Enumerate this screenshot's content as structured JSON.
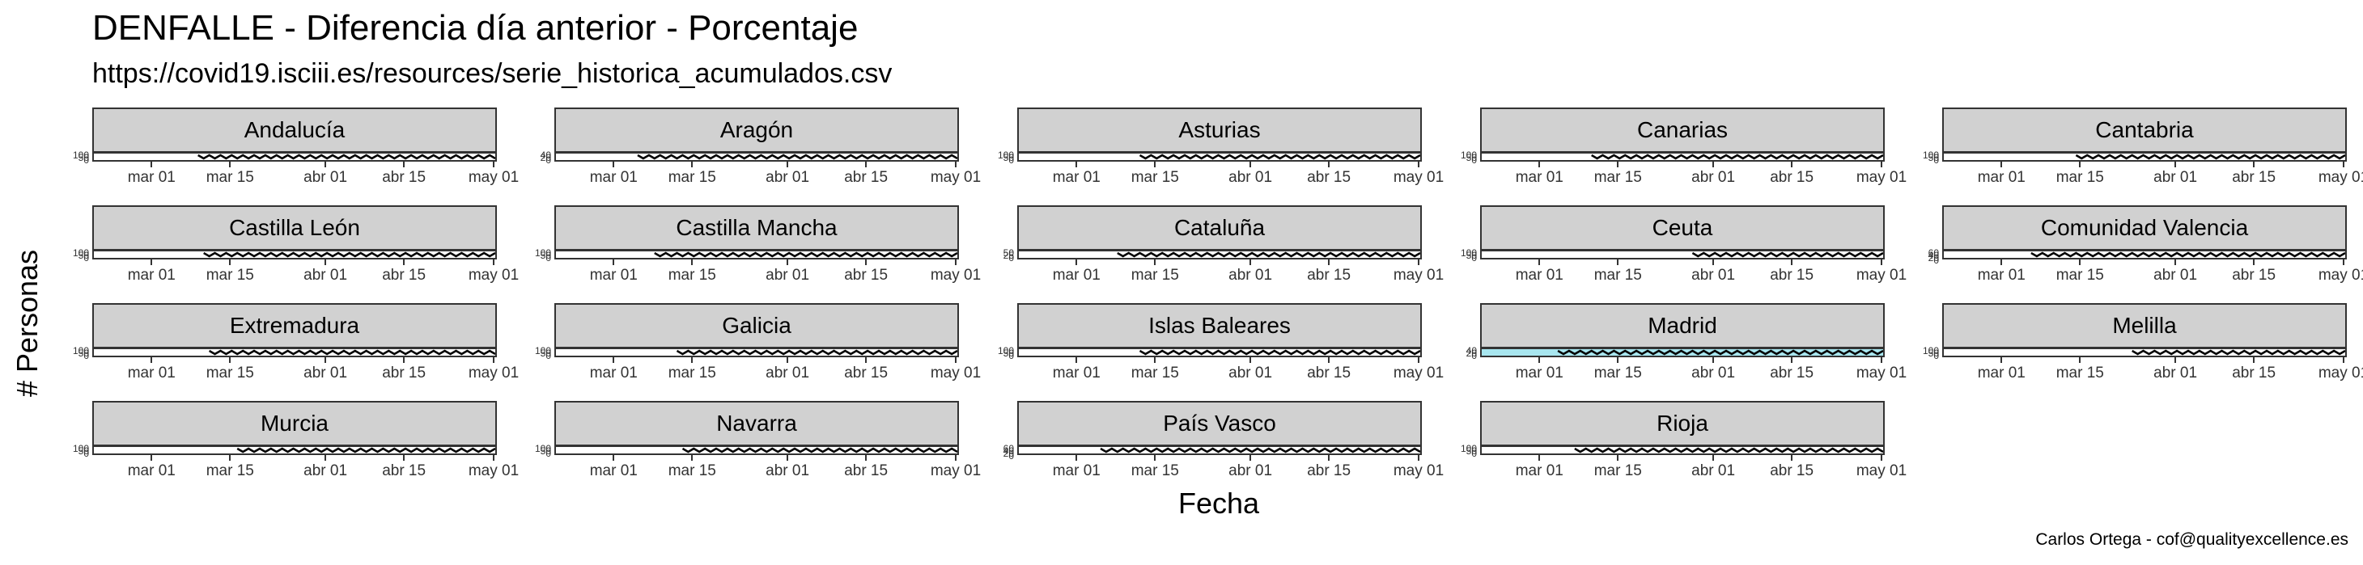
{
  "title": "DENFALLE - Diferencia día anterior - Porcentaje",
  "subtitle": "https://covid19.isciii.es/resources/serie_historica_acumulados.csv",
  "caption": "Carlos Ortega - cof@qualityexcellence.es",
  "colors": {
    "strip_bg": "#d1d1d1",
    "frame": "#333333",
    "series_line": "#000000",
    "highlight_fill": "#a8e6ef"
  },
  "chart_data": {
    "type": "line",
    "layout": "facet-grid 5 columns x 4 rows",
    "xlabel": "Fecha",
    "ylabel": "# Personas",
    "x_ticks": [
      "mar 01",
      "mar 15",
      "abr 01",
      "abr 15",
      "may 01"
    ],
    "x_tick_dates": [
      "2020-03-01",
      "2020-03-15",
      "2020-04-01",
      "2020-04-15",
      "2020-05-01"
    ],
    "xlim": [
      "2020-02-20",
      "2020-05-01"
    ],
    "panels": [
      {
        "name": "Andalucía",
        "y_ticks": [
          "100",
          "50",
          "0"
        ],
        "data_start": "2020-03-09",
        "highlight": false
      },
      {
        "name": "Aragón",
        "y_ticks": [
          "40",
          "20",
          "0"
        ],
        "data_start": "2020-03-05",
        "highlight": false
      },
      {
        "name": "Asturias",
        "y_ticks": [
          "100",
          "50",
          "0"
        ],
        "data_start": "2020-03-12",
        "highlight": false
      },
      {
        "name": "Canarias",
        "y_ticks": [
          "100",
          "50",
          "0"
        ],
        "data_start": "2020-03-10",
        "highlight": false
      },
      {
        "name": "Cantabria",
        "y_ticks": [
          "100",
          "50",
          "0"
        ],
        "data_start": "2020-03-14",
        "highlight": false
      },
      {
        "name": "Castilla León",
        "y_ticks": [
          "100",
          "50",
          "0"
        ],
        "data_start": "2020-03-10",
        "highlight": false
      },
      {
        "name": "Castilla Mancha",
        "y_ticks": [
          "100",
          "50",
          "0"
        ],
        "data_start": "2020-03-08",
        "highlight": false
      },
      {
        "name": "Cataluña",
        "y_ticks": [
          "50",
          "25",
          "0"
        ],
        "data_start": "2020-03-08",
        "highlight": false
      },
      {
        "name": "Ceuta",
        "y_ticks": [
          "100",
          "50",
          "0"
        ],
        "data_start": "2020-03-28",
        "highlight": false
      },
      {
        "name": "Comunidad Valencia",
        "y_ticks": [
          "60",
          "40",
          "20",
          "0"
        ],
        "data_start": "2020-03-06",
        "highlight": false
      },
      {
        "name": "Extremadura",
        "y_ticks": [
          "100",
          "50",
          "0"
        ],
        "data_start": "2020-03-11",
        "highlight": false
      },
      {
        "name": "Galicia",
        "y_ticks": [
          "100",
          "50",
          "0"
        ],
        "data_start": "2020-03-12",
        "highlight": false
      },
      {
        "name": "Islas Baleares",
        "y_ticks": [
          "100",
          "50",
          "0"
        ],
        "data_start": "2020-03-12",
        "highlight": false
      },
      {
        "name": "Madrid",
        "y_ticks": [
          "40",
          "20",
          "0"
        ],
        "data_start": "2020-03-04",
        "highlight": true
      },
      {
        "name": "Melilla",
        "y_ticks": [
          "100",
          "50",
          "0"
        ],
        "data_start": "2020-03-24",
        "highlight": false
      },
      {
        "name": "Murcia",
        "y_ticks": [
          "100",
          "50",
          "0"
        ],
        "data_start": "2020-03-16",
        "highlight": false
      },
      {
        "name": "Navarra",
        "y_ticks": [
          "100",
          "50",
          "0"
        ],
        "data_start": "2020-03-13",
        "highlight": false
      },
      {
        "name": "País Vasco",
        "y_ticks": [
          "60",
          "40",
          "20",
          "0"
        ],
        "data_start": "2020-03-05",
        "highlight": false
      },
      {
        "name": "Rioja",
        "y_ticks": [
          "100",
          "50",
          "0"
        ],
        "data_start": "2020-03-07",
        "highlight": false
      }
    ]
  }
}
